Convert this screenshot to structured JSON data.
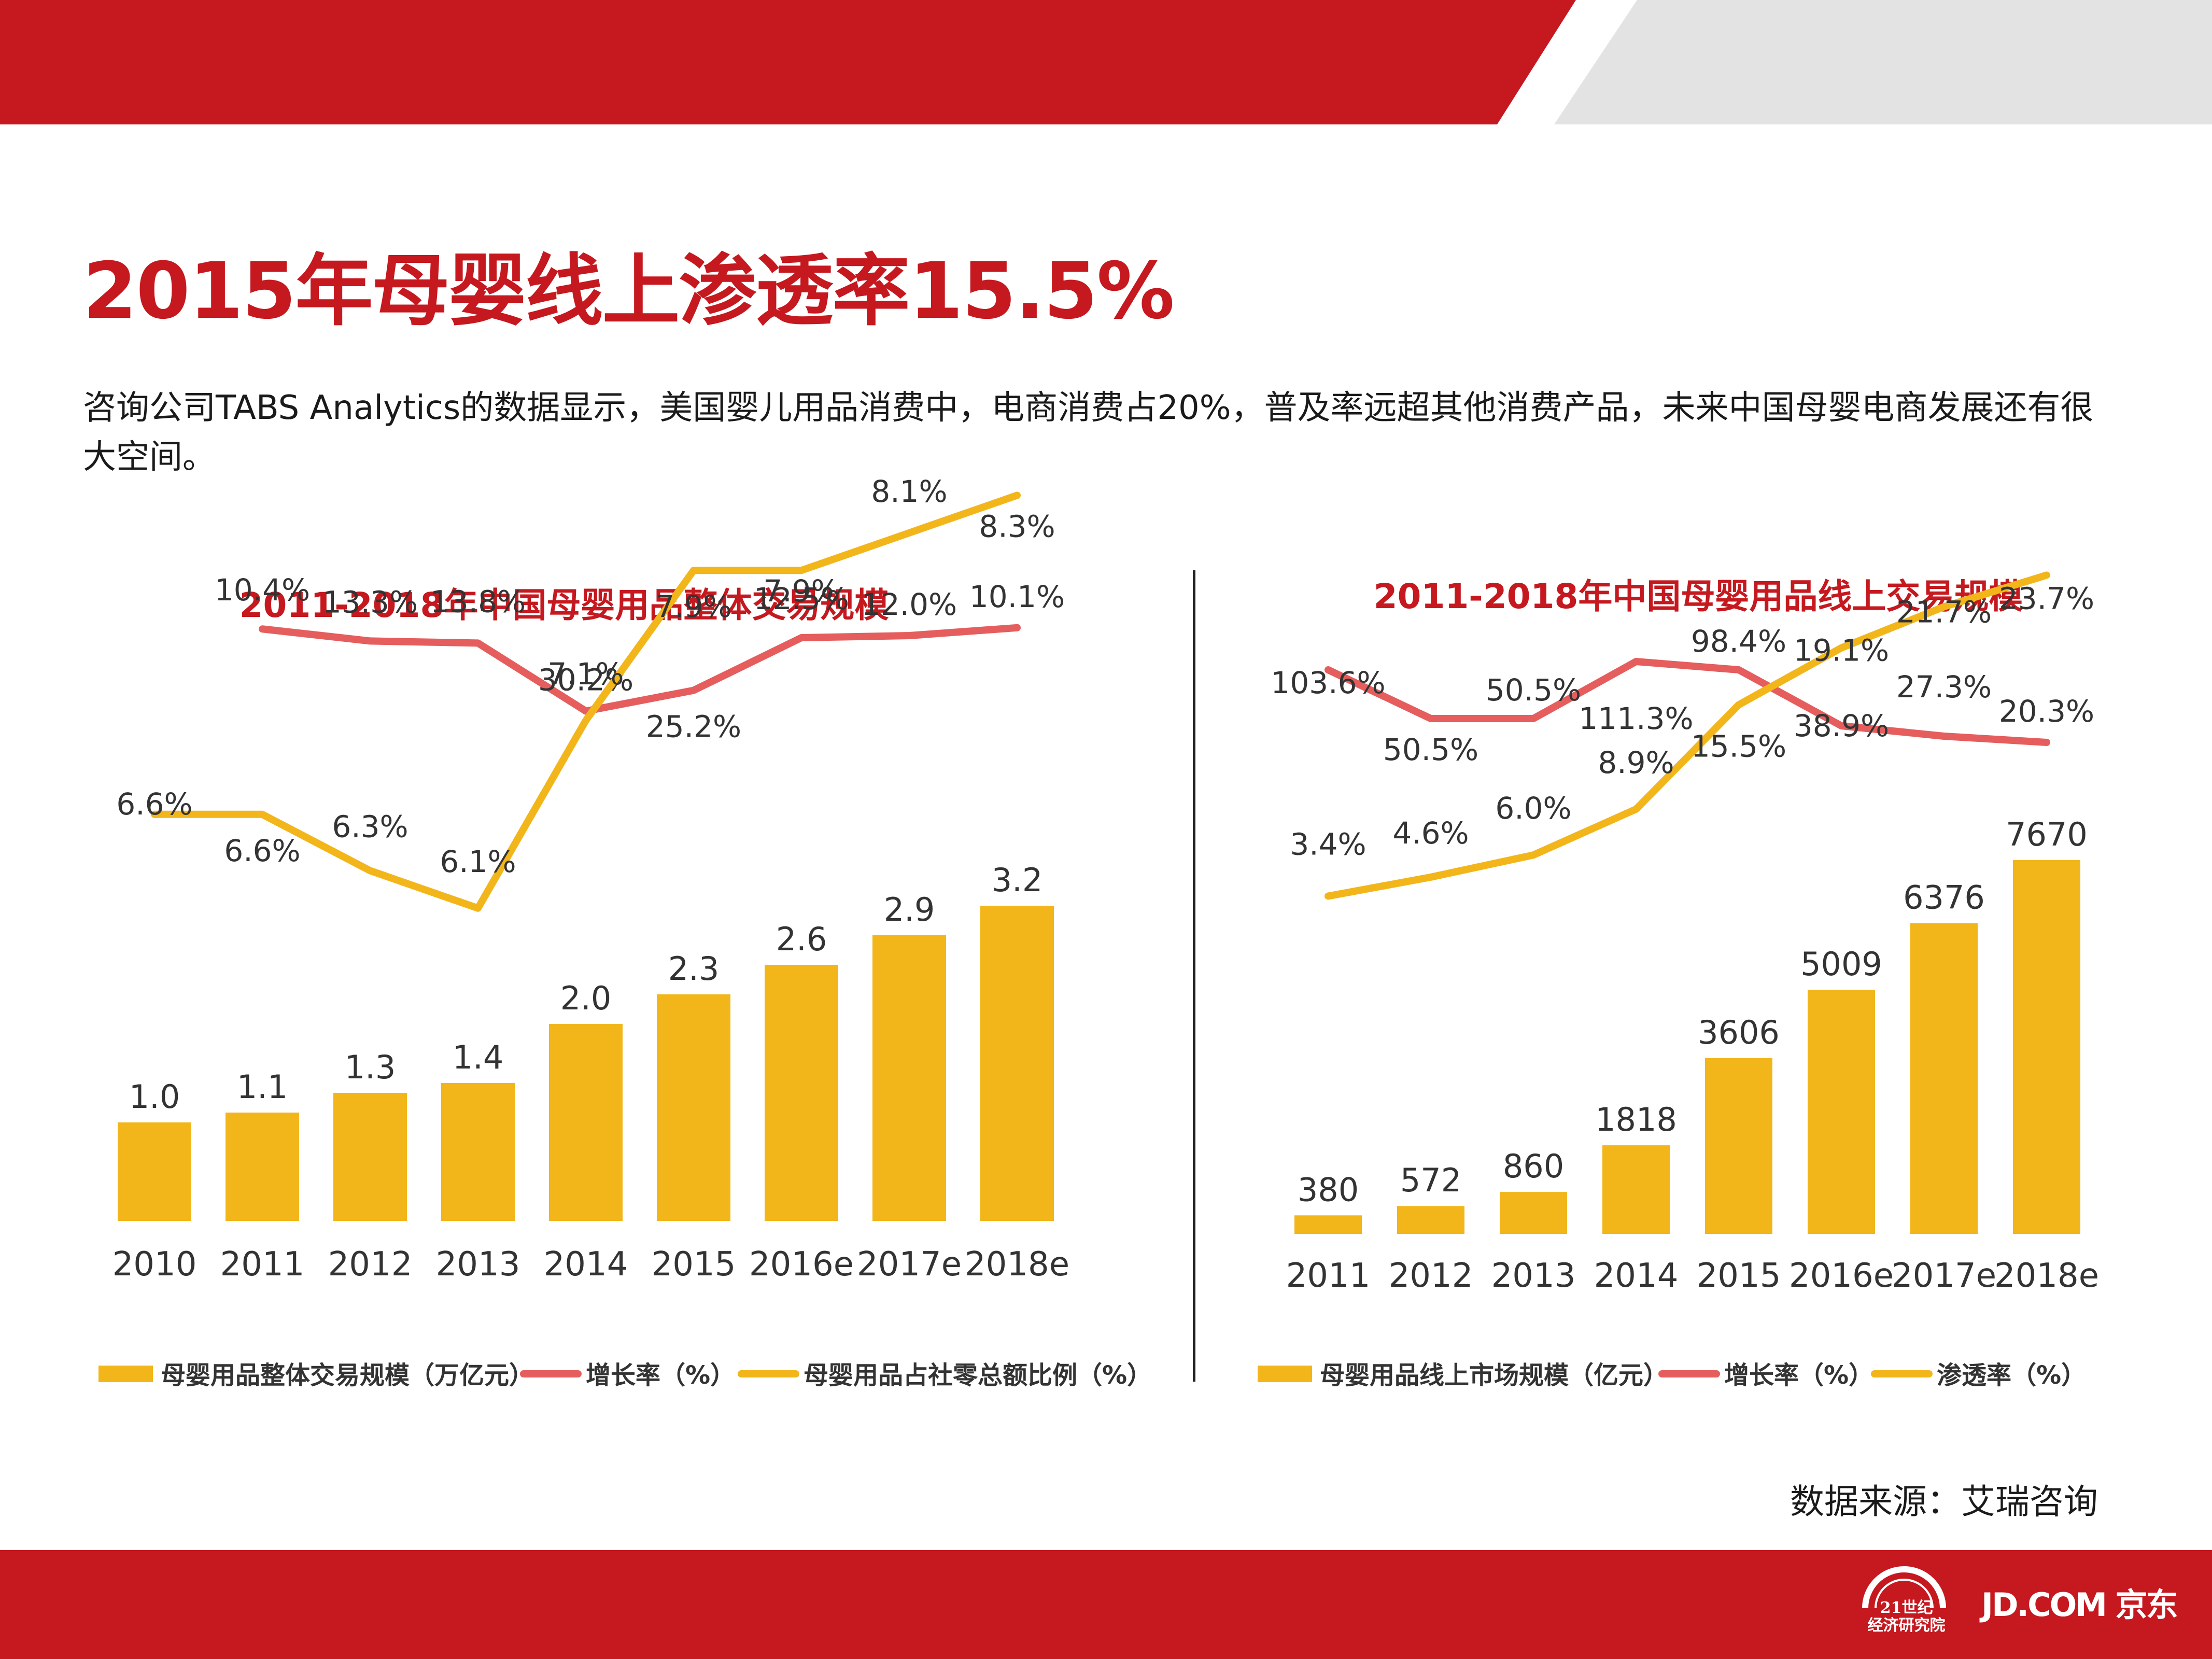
{
  "header": {
    "title": "2015年母婴线上渗透率15.5%",
    "intro": "咨询公司TABS  Analytics的数据显示，美国婴儿用品消费中，电商消费占20%，普及率远超其他消费产品，未来中国母婴电商发展还有很大空间。"
  },
  "colors": {
    "brand_red": "#c5181f",
    "bar_gold": "#f2b61b",
    "line_red": "#e55d5d",
    "line_gold": "#f2b61b",
    "band_gray": "#e3e3e3"
  },
  "chart_data": [
    {
      "type": "bar+line",
      "title": "2011-2018年中国母婴用品整体交易规模",
      "categories": [
        "2010",
        "2011",
        "2012",
        "2013",
        "2014",
        "2015",
        "2016e",
        "2017e",
        "2018e"
      ],
      "series": [
        {
          "name": "母婴用品整体交易规模（万亿元）",
          "kind": "bar",
          "values": [
            1.0,
            1.1,
            1.3,
            1.4,
            2.0,
            2.3,
            2.6,
            2.9,
            3.2
          ],
          "labels": [
            "1.0",
            "1.1",
            "1.3",
            "1.4",
            "2.0",
            "2.3",
            "2.6",
            "2.9",
            "3.2"
          ]
        },
        {
          "name": "增长率（%）",
          "kind": "line",
          "values": [
            null,
            10.4,
            13.3,
            13.8,
            30.2,
            25.2,
            12.5,
            12.0,
            10.1
          ],
          "labels": [
            null,
            "10.4%",
            "13.3%",
            "13.8%",
            "30.2%",
            "25.2%",
            "12.5%",
            "12.0%",
            "10.1%"
          ]
        },
        {
          "name": "母婴用品占社零总额比例（%）",
          "kind": "line",
          "values": [
            6.6,
            6.6,
            6.3,
            6.1,
            7.1,
            7.9,
            7.9,
            8.1,
            8.3
          ],
          "labels": [
            "6.6%",
            "6.6%",
            "6.3%",
            "6.1%",
            "7.1%",
            "7.9%",
            "7.9%",
            "8.1%",
            "8.3%"
          ]
        }
      ]
    },
    {
      "type": "bar+line",
      "title": "2011-2018年中国母婴用品线上交易规模",
      "categories": [
        "2011",
        "2012",
        "2013",
        "2014",
        "2015",
        "2016e",
        "2017e",
        "2018e"
      ],
      "series": [
        {
          "name": "母婴用品线上市场规模（亿元）",
          "kind": "bar",
          "values": [
            380,
            572,
            860,
            1818,
            3606,
            5009,
            6376,
            7670
          ],
          "labels": [
            "380",
            "572",
            "860",
            "1818",
            "3606",
            "5009",
            "6376",
            "7670"
          ]
        },
        {
          "name": "增长率（%）",
          "kind": "line",
          "values": [
            103.6,
            50.5,
            50.5,
            111.3,
            98.4,
            38.9,
            27.3,
            20.3
          ],
          "labels": [
            "103.6%",
            "50.5%",
            "50.5%",
            "111.3%",
            "98.4%",
            "38.9%",
            "27.3%",
            "20.3%"
          ]
        },
        {
          "name": "渗透率（%）",
          "kind": "line",
          "values": [
            3.4,
            4.6,
            6.0,
            8.9,
            15.5,
            19.1,
            21.7,
            23.7
          ],
          "labels": [
            "3.4%",
            "4.6%",
            "6.0%",
            "8.9%",
            "15.5%",
            "19.1%",
            "21.7%",
            "23.7%"
          ]
        }
      ]
    }
  ],
  "footer": {
    "source": "数据来源：艾瑞咨询",
    "logo_21_line1": "21世纪",
    "logo_21_line2": "经济研究院",
    "logo_jd": "JD.COM 京东"
  }
}
